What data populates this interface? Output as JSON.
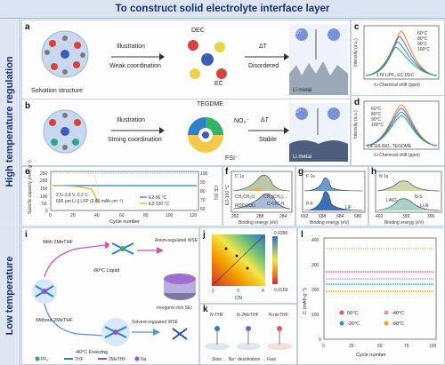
{
  "banner": "To construct solid electrolyte interface layer",
  "side_high": "High temperature regulation",
  "side_low": "Low temperature",
  "panel_a": {
    "label": "a",
    "caption": "Solvation structure",
    "arrow1_top": "Illustration",
    "arrow1_bottom": "Weak coordination",
    "dec": "DEC",
    "ec": "EC",
    "arrow2_top": "ΔT",
    "arrow2_bottom": "Disordered",
    "ion": "Li⁺",
    "metal": "Li metal"
  },
  "panel_b": {
    "label": "b",
    "arrow1_top": "Illustration",
    "arrow1_bottom": "Strong coordination",
    "tegdme": "TEGDME",
    "no3": "NO₃⁻",
    "fsi": "FSI⁻",
    "arrow2_top": "ΔT",
    "arrow2_bottom": "Stable",
    "ion": "Li⁺",
    "metal": "Li metal"
  },
  "panel_c": {
    "label": "c",
    "legend": [
      "60°C",
      "80°C",
      "90°C",
      "100°C"
    ],
    "note": "1 M LiPF₆ EC:DEC",
    "xlabel": "⁷Li Chemical shift (ppm)",
    "ylabel": "Intensity (a.u.)"
  },
  "panel_d": {
    "label": "d",
    "legend": [
      "60°C",
      "80°C",
      "90°C",
      "100°C"
    ],
    "note": "LiFSI/LiNO₃ TEGDME",
    "xlabel": "⁷Li Chemical shift (ppm)",
    "ylabel": "Intensity (a.u.)"
  },
  "panel_e": {
    "label": "e",
    "ylabel_left": "Specific capacity (mAh g⁻¹)",
    "ylabel_right": "CE (%)",
    "xlabel": "Cycle number",
    "note1": "2.5–3.8 V, 0.2 C",
    "note2": "600 μm Li || LFP (2.85 mAh cm⁻²)",
    "legend": [
      "E2-90 °C",
      "E2-100 °C"
    ],
    "yticks_left": [
      "250",
      "200",
      "150",
      "100",
      "50",
      "0"
    ],
    "yticks_right": [
      "100",
      "90",
      "80",
      "70",
      "60"
    ],
    "xticks": [
      "0",
      "20",
      "40",
      "60",
      "80",
      "100",
      "120"
    ]
  },
  "panel_f": {
    "label": "f",
    "title": "C 1s",
    "peaks": [
      "CH₂CH₂O",
      "CH₂(CH₂)…",
      "C-C/C-H",
      "ROCOOLi"
    ],
    "side": "E2-100 °C",
    "xlabel": "Binding energy (eV)",
    "xticks": [
      "292",
      "288",
      "284"
    ]
  },
  "panel_g": {
    "label": "g",
    "title": "F 1s",
    "peaks": [
      "P-F",
      "LiF"
    ],
    "xlabel": "Binding energy (eV)",
    "xticks": [
      "692",
      "688",
      "684",
      "680"
    ]
  },
  "panel_h": {
    "label": "h",
    "title": "N 1s",
    "peaks": [
      "LiNOₓ",
      "N-S",
      "Li₃N"
    ],
    "xlabel": "Binding energy (eV)",
    "xticks": [
      "402",
      "399",
      "396"
    ]
  },
  "panel_i": {
    "label": "i",
    "with": "With 2MeTHF",
    "without": "Without 2MeTHF",
    "liquid": "-80°C Liquid",
    "freezing": "-40°C Freezing",
    "anion": "Anion-regulated WSE",
    "solvent": "Solvent-regulated WSE",
    "sei": "Inorganic-rich SEI",
    "legend": [
      "PF₆⁻",
      "THF",
      "2MeTHF",
      "Na"
    ]
  },
  "panel_j": {
    "label": "j",
    "xlabel": "CN",
    "xticks": [
      "2",
      "3",
      "4"
    ],
    "cbar_top": "0.0286",
    "cbar_bottom": "0.0159"
  },
  "panel_k": {
    "label": "k",
    "items": [
      "N-THF",
      "N-2MeTHF",
      "N-nieTHF"
    ],
    "bottom": "Slow ← Na⁺ desolvation → Fast"
  },
  "panel_l": {
    "label": "l",
    "ylabel": "C (mAh g⁻¹)",
    "xlabel": "Cycle number",
    "yticks": [
      "400",
      "300",
      "200",
      "100",
      "0"
    ],
    "xticks": [
      "0",
      "25",
      "50",
      "75",
      "100"
    ],
    "legend": [
      {
        "name": "55°C",
        "color": "#d4567c"
      },
      {
        "name": "-20°C",
        "color": "#2b8ad8"
      },
      {
        "name": "-40°C",
        "color": "#c79ad8"
      },
      {
        "name": "-60°C",
        "color": "#f0a12a"
      }
    ]
  }
}
